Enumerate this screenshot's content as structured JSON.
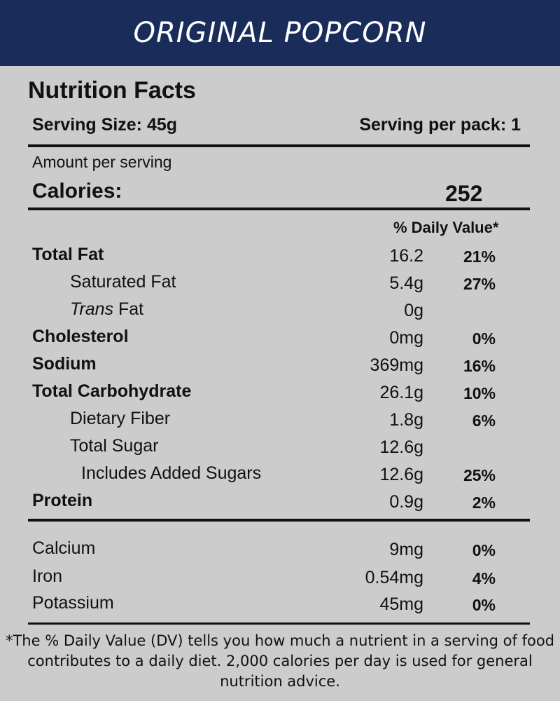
{
  "banner": {
    "title": "ORIGINAL POPCORN"
  },
  "label": {
    "title": "Nutrition Facts",
    "serving_size": "Serving Size: 45g",
    "serving_per_pack": "Serving per pack: 1",
    "amount_per_serving": "Amount per serving",
    "calories_label": "Calories:",
    "calories_value": "252",
    "daily_value_header": "% Daily Value*"
  },
  "nutrients": [
    {
      "name": "Total Fat",
      "amount": "16.2",
      "dv": "21%"
    },
    {
      "name": "Saturated Fat",
      "amount": "5.4g",
      "dv": "27%"
    },
    {
      "name_italic": "Trans",
      "name": " Fat",
      "amount": "0g",
      "dv": ""
    },
    {
      "name": "Cholesterol",
      "amount": "0mg",
      "dv": "0%"
    },
    {
      "name": "Sodium",
      "amount": "369mg",
      "dv": "16%"
    },
    {
      "name": "Total Carbohydrate",
      "amount": "26.1g",
      "dv": "10%"
    },
    {
      "name": "Dietary Fiber",
      "amount": "1.8g",
      "dv": "6%"
    },
    {
      "name": "Total Sugar",
      "amount": "12.6g",
      "dv": ""
    },
    {
      "name": "Includes Added Sugars",
      "amount": "12.6g",
      "dv": "25%"
    },
    {
      "name": "Protein",
      "amount": "0.9g",
      "dv": "2%"
    }
  ],
  "minerals": [
    {
      "name": "Calcium",
      "amount": "9mg",
      "dv": "0%"
    },
    {
      "name": "Iron",
      "amount": "0.54mg",
      "dv": "4%"
    },
    {
      "name": "Potassium",
      "amount": "45mg",
      "dv": "0%"
    }
  ],
  "footnote": "*The % Daily Value (DV) tells you how much a nutrient in a serving of food contributes to a daily diet. 2,000 calories per day is used for general nutrition advice.",
  "colors": {
    "banner": "#1a2d5a",
    "background": "#cccccc",
    "text": "#111111"
  }
}
